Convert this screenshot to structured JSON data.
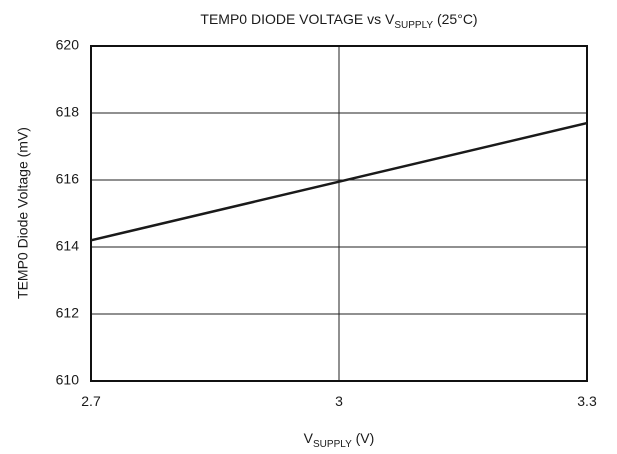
{
  "chart_data": {
    "type": "line",
    "title": [
      "TEMP0 DIODE VOLTAGE vs V",
      "SUPPLY",
      " (25°C)"
    ],
    "xlabel": [
      "V",
      "SUPPLY",
      " (V)"
    ],
    "ylabel": "TEMP0 Diode Voltage (mV)",
    "x": [
      2.7,
      3,
      3.3
    ],
    "series": [
      {
        "name": "TEMP0 Diode Voltage",
        "color": "#1a1a1a",
        "values": [
          614.2,
          615.95,
          617.7
        ]
      }
    ],
    "xlim": [
      2.7,
      3.3
    ],
    "xticks": [
      2.7,
      3,
      3.3
    ],
    "ylim": [
      610,
      620
    ],
    "yticks": [
      610,
      612,
      614,
      616,
      618,
      620
    ],
    "grid": true
  }
}
